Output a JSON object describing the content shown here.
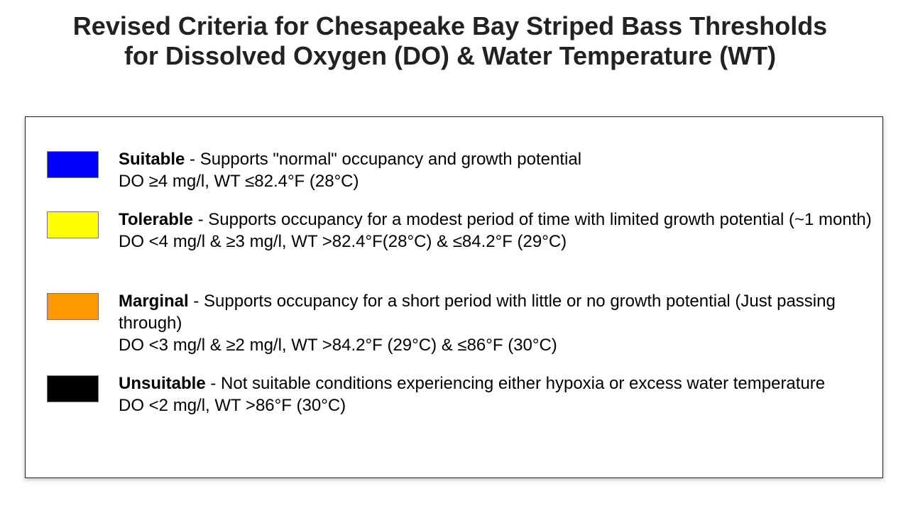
{
  "title": {
    "line1": "Revised Criteria for Chesapeake Bay Striped Bass Thresholds",
    "line2": "for Dissolved Oxygen (DO) & Water Temperature (WT)"
  },
  "legend": [
    {
      "label": "Suitable",
      "color": "#0000ff",
      "description": " - Supports \"normal\" occupancy and growth potential",
      "criteria": "DO ≥4 mg/l, WT ≤82.4°F (28°C)"
    },
    {
      "label": "Tolerable",
      "color": "#ffff00",
      "description": " - Supports occupancy for a modest period of time with limited growth potential (~1 month)",
      "criteria": "DO <4 mg/l & ≥3 mg/l, WT >82.4°F(28°C) & ≤84.2°F (29°C)"
    },
    {
      "label": "Marginal",
      "color": "#ff9900",
      "description": " - Supports occupancy for a short period with little or no growth potential (Just passing through)",
      "criteria": "DO <3 mg/l & ≥2 mg/l, WT >84.2°F (29°C) & ≤86°F (30°C)"
    },
    {
      "label": "Unsuitable",
      "color": "#000000",
      "description": " - Not suitable conditions experiencing either hypoxia or excess water temperature",
      "criteria": "DO <2 mg/l, WT >86°F (30°C)"
    }
  ]
}
